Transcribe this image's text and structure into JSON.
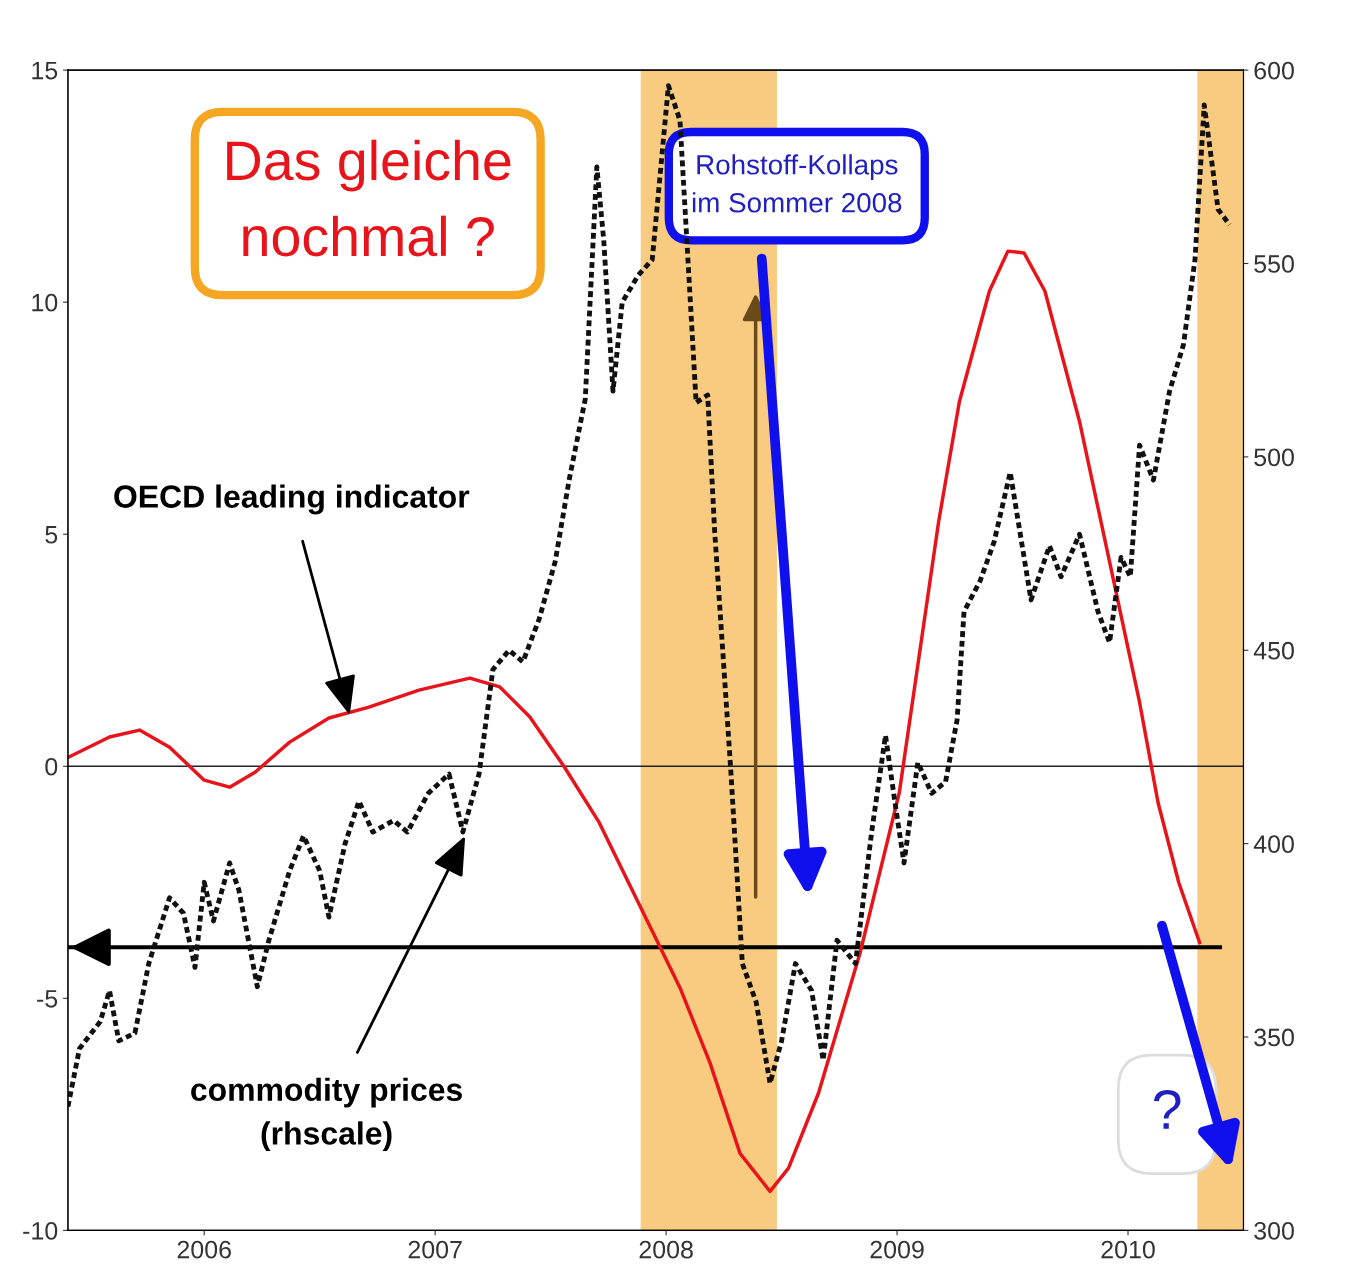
{
  "chart_data": {
    "type": "line",
    "xlim": [
      2005.41,
      2010.5
    ],
    "xticks": [
      2006,
      2007,
      2008,
      2009,
      2010
    ],
    "ylim": [
      -10,
      15
    ],
    "yticks": [
      -10,
      -5,
      0,
      5,
      10,
      15
    ],
    "y2lim": [
      300,
      600
    ],
    "y2ticks": [
      300,
      350,
      400,
      450,
      500,
      550,
      600
    ],
    "legend": false,
    "grid": false,
    "series": [
      {
        "type": "line",
        "color": "#e8141b",
        "line_style": "solid",
        "x": [
          2005.41,
          2005.59,
          2005.72,
          2005.85,
          2006.0,
          2006.11,
          2006.22,
          2006.37,
          2006.54,
          2006.71,
          2006.93,
          2007.15,
          2007.28,
          2007.41,
          2007.56,
          2007.71,
          2007.88,
          2008.06,
          2008.19,
          2008.32,
          2008.45,
          2008.53,
          2008.66,
          2008.84,
          2009.01,
          2009.18,
          2009.27,
          2009.4,
          2009.48,
          2009.55,
          2009.64,
          2009.79,
          2009.92,
          2010.05,
          2010.13,
          2010.22,
          2010.31
        ],
        "values": [
          0.19,
          0.63,
          0.78,
          0.41,
          -0.3,
          -0.45,
          -0.13,
          0.52,
          1.04,
          1.27,
          1.64,
          1.9,
          1.71,
          1.06,
          -0.02,
          -1.21,
          -2.94,
          -4.77,
          -6.39,
          -8.34,
          -9.16,
          -8.66,
          -7.04,
          -4.02,
          -0.56,
          5.27,
          7.86,
          10.24,
          11.1,
          11.06,
          10.24,
          7.43,
          4.41,
          1.38,
          -0.78,
          -2.51,
          -3.8
        ]
      },
      {
        "type": "line",
        "color": "#111111",
        "line_style": "dotted",
        "axis": "y2",
        "x": [
          2005.41,
          2005.46,
          2005.55,
          2005.59,
          2005.63,
          2005.7,
          2005.76,
          2005.85,
          2005.91,
          2005.96,
          2006.0,
          2006.04,
          2006.11,
          2006.15,
          2006.23,
          2006.28,
          2006.37,
          2006.43,
          2006.5,
          2006.54,
          2006.61,
          2006.67,
          2006.73,
          2006.82,
          2006.88,
          2006.97,
          2007.06,
          2007.12,
          2007.19,
          2007.25,
          2007.32,
          2007.38,
          2007.45,
          2007.52,
          2007.58,
          2007.65,
          2007.7,
          2007.73,
          2007.77,
          2007.81,
          2007.88,
          2007.94,
          2008.01,
          2008.06,
          2008.13,
          2008.18,
          2008.21,
          2008.28,
          2008.33,
          2008.39,
          2008.45,
          2008.5,
          2008.56,
          2008.63,
          2008.68,
          2008.74,
          2008.82,
          2008.89,
          2008.95,
          2008.99,
          2009.03,
          2009.09,
          2009.15,
          2009.21,
          2009.26,
          2009.29,
          2009.36,
          2009.42,
          2009.49,
          2009.58,
          2009.66,
          2009.71,
          2009.79,
          2009.87,
          2009.92,
          2009.97,
          2010.01,
          2010.05,
          2010.11,
          2010.18,
          2010.24,
          2010.29,
          2010.33,
          2010.39,
          2010.44
        ],
        "values": [
          332,
          347,
          354,
          362,
          349,
          351,
          369,
          386,
          382,
          368,
          390,
          380,
          395,
          388,
          363,
          375,
          393,
          402,
          393,
          381,
          400,
          411,
          403,
          406,
          403,
          413,
          418,
          403,
          418,
          445,
          450,
          447,
          458,
          473,
          494,
          515,
          575,
          556,
          517,
          540,
          547,
          551,
          596,
          587,
          514,
          516,
          481,
          419,
          369,
          359,
          338,
          349,
          369,
          362,
          344,
          375,
          369,
          403,
          428,
          411,
          395,
          421,
          413,
          416,
          432,
          460,
          468,
          478,
          496,
          463,
          477,
          469,
          480,
          460,
          452,
          474,
          469,
          503,
          494,
          517,
          529,
          551,
          591,
          564,
          560
        ]
      }
    ],
    "ref_lines": [
      {
        "axis": "y",
        "value": 0,
        "color": "#222222"
      },
      {
        "axis": "y",
        "value": -3.9,
        "color": "#000000"
      }
    ],
    "bands": [
      {
        "axis": "x",
        "from": 2007.89,
        "to": 2008.48,
        "color": "#f7c26a"
      },
      {
        "axis": "x",
        "from": 2010.3,
        "to": 2010.5,
        "color": "#f7c26a"
      }
    ],
    "annotations": [
      "Das gleiche nochmal ?",
      "Rohstoff-Kollaps im Sommer 2008",
      {
        "text": "OECD leading indicator",
        "x": 2006.63,
        "y": 1.1
      },
      {
        "text": "commodity prices (rhscale)",
        "x": 2007.13,
        "y": -1.5
      },
      "?"
    ]
  }
}
